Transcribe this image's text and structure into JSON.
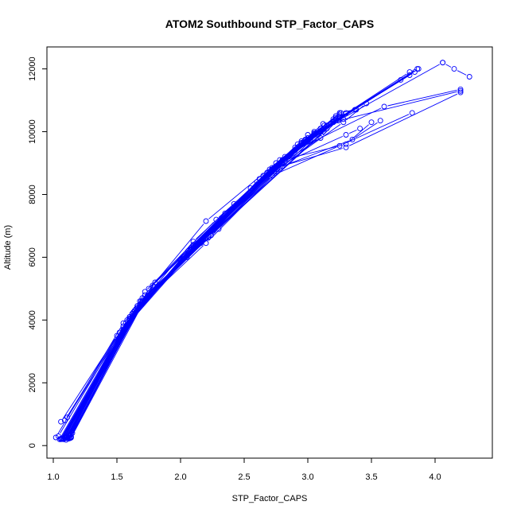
{
  "chart_data": {
    "type": "line",
    "title": "ATOM2 Southbound STP_Factor_CAPS",
    "xlabel": "STP_Factor_CAPS",
    "ylabel": "Altitude (m)",
    "xlim": [
      0.95,
      4.45
    ],
    "ylim": [
      -400,
      12700
    ],
    "x_ticks": [
      1.0,
      1.5,
      2.0,
      2.5,
      3.0,
      3.5,
      4.0
    ],
    "x_tick_labels": [
      "1.0",
      "1.5",
      "2.0",
      "2.5",
      "3.0",
      "3.5",
      "4.0"
    ],
    "y_ticks": [
      0,
      2000,
      4000,
      6000,
      8000,
      10000,
      12000
    ],
    "y_tick_labels": [
      "0",
      "2000",
      "4000",
      "6000",
      "8000",
      "10000",
      "12000"
    ],
    "series_color": "#0000ff",
    "grid": false,
    "series": [
      {
        "values": [
          [
            1.02,
            260
          ],
          [
            1.55,
            3900
          ],
          [
            2.1,
            6500
          ],
          [
            2.95,
            9700
          ],
          [
            4.06,
            12200
          ]
        ]
      },
      {
        "values": [
          [
            4.06,
            12200
          ],
          [
            4.15,
            12000
          ],
          [
            4.27,
            11750
          ]
        ]
      },
      {
        "values": [
          [
            1.06,
            200
          ],
          [
            1.62,
            4100
          ],
          [
            2.15,
            6450
          ],
          [
            2.95,
            9650
          ],
          [
            3.8,
            11900
          ]
        ]
      },
      {
        "values": [
          [
            1.08,
            220
          ],
          [
            1.6,
            4000
          ],
          [
            2.12,
            6400
          ],
          [
            3.0,
            9800
          ],
          [
            3.86,
            12000
          ]
        ]
      },
      {
        "values": [
          [
            1.1,
            240
          ],
          [
            1.64,
            4300
          ],
          [
            2.18,
            6550
          ],
          [
            3.05,
            9900
          ],
          [
            3.87,
            12000
          ]
        ]
      },
      {
        "values": [
          [
            1.12,
            250
          ],
          [
            1.66,
            4400
          ],
          [
            2.2,
            6600
          ],
          [
            3.1,
            10000
          ],
          [
            3.73,
            11650
          ]
        ]
      },
      {
        "values": [
          [
            1.13,
            230
          ],
          [
            1.68,
            4500
          ],
          [
            2.22,
            6650
          ],
          [
            3.2,
            10300
          ],
          [
            3.8,
            11800
          ]
        ]
      },
      {
        "values": [
          [
            1.14,
            270
          ],
          [
            1.7,
            4600
          ],
          [
            2.24,
            6700
          ],
          [
            3.25,
            10450
          ],
          [
            3.84,
            11900
          ]
        ]
      },
      {
        "values": [
          [
            1.05,
            200
          ],
          [
            1.6,
            4100
          ],
          [
            2.1,
            6350
          ],
          [
            2.7,
            8800
          ],
          [
            3.24,
            10350
          ],
          [
            4.2,
            11300
          ]
        ]
      },
      {
        "values": [
          [
            1.07,
            210
          ],
          [
            1.62,
            4200
          ],
          [
            2.14,
            6400
          ],
          [
            2.75,
            8850
          ],
          [
            3.3,
            9500
          ],
          [
            4.2,
            11250
          ]
        ]
      },
      {
        "values": [
          [
            1.09,
            250
          ],
          [
            1.58,
            3850
          ],
          [
            2.1,
            6300
          ],
          [
            2.72,
            8600
          ],
          [
            3.25,
            9550
          ],
          [
            3.82,
            10600
          ]
        ]
      },
      {
        "values": [
          [
            1.11,
            260
          ],
          [
            1.65,
            4350
          ],
          [
            2.2,
            6450
          ],
          [
            2.8,
            8900
          ],
          [
            3.35,
            9750
          ],
          [
            3.57,
            10350
          ]
        ]
      },
      {
        "values": [
          [
            1.1,
            230
          ],
          [
            1.63,
            4250
          ],
          [
            2.16,
            6450
          ],
          [
            2.78,
            8950
          ],
          [
            3.3,
            9900
          ],
          [
            3.41,
            10100
          ]
        ]
      },
      {
        "values": [
          [
            1.13,
            260
          ],
          [
            1.7,
            4550
          ],
          [
            2.24,
            6700
          ],
          [
            2.76,
            8800
          ],
          [
            3.28,
            10300
          ],
          [
            3.46,
            10900
          ]
        ]
      },
      {
        "values": [
          [
            1.12,
            300
          ],
          [
            1.68,
            4600
          ],
          [
            2.3,
            6900
          ],
          [
            2.85,
            9200
          ],
          [
            3.25,
            10600
          ],
          [
            3.37,
            10700
          ]
        ]
      },
      {
        "values": [
          [
            1.14,
            350
          ],
          [
            1.72,
            4800
          ],
          [
            2.2,
            7150
          ],
          [
            2.9,
            9500
          ],
          [
            3.2,
            10400
          ],
          [
            3.26,
            10600
          ]
        ]
      },
      {
        "values": [
          [
            1.08,
            200
          ],
          [
            1.55,
            3800
          ],
          [
            2.06,
            6200
          ],
          [
            2.65,
            8600
          ],
          [
            3.05,
            9950
          ]
        ]
      },
      {
        "values": [
          [
            1.1,
            180
          ],
          [
            1.57,
            3900
          ],
          [
            2.08,
            6250
          ],
          [
            2.68,
            8700
          ],
          [
            3.1,
            10100
          ]
        ]
      },
      {
        "values": [
          [
            1.12,
            220
          ],
          [
            1.6,
            4050
          ],
          [
            2.12,
            6350
          ],
          [
            2.72,
            8800
          ],
          [
            3.15,
            10200
          ]
        ]
      },
      {
        "values": [
          [
            1.06,
            760
          ],
          [
            1.5,
            3500
          ],
          [
            2.0,
            5900
          ],
          [
            2.55,
            8200
          ],
          [
            3.0,
            9900
          ]
        ]
      },
      {
        "values": [
          [
            1.09,
            800
          ],
          [
            1.52,
            3600
          ],
          [
            2.02,
            5950
          ],
          [
            2.6,
            8400
          ],
          [
            3.05,
            10000
          ]
        ]
      },
      {
        "values": [
          [
            1.11,
            900
          ],
          [
            1.55,
            3700
          ],
          [
            2.05,
            6000
          ],
          [
            2.62,
            8500
          ],
          [
            3.12,
            10250
          ]
        ]
      },
      {
        "values": [
          [
            1.04,
            300
          ],
          [
            1.58,
            4000
          ],
          [
            2.1,
            6300
          ],
          [
            2.7,
            8700
          ],
          [
            3.22,
            10450
          ],
          [
            3.38,
            10700
          ]
        ]
      },
      {
        "values": [
          [
            1.15,
            400
          ],
          [
            1.75,
            5000
          ],
          [
            2.25,
            6900
          ],
          [
            2.8,
            9000
          ],
          [
            3.2,
            10300
          ]
        ]
      },
      {
        "values": [
          [
            1.13,
            330
          ],
          [
            1.72,
            4900
          ],
          [
            2.28,
            7200
          ],
          [
            2.74,
            8850
          ],
          [
            3.22,
            10500
          ]
        ]
      },
      {
        "values": [
          [
            1.14,
            250
          ],
          [
            1.78,
            5100
          ],
          [
            2.35,
            7400
          ],
          [
            2.92,
            9600
          ],
          [
            3.25,
            10550
          ]
        ]
      },
      {
        "values": [
          [
            1.1,
            280
          ],
          [
            1.8,
            5200
          ],
          [
            2.42,
            7700
          ],
          [
            2.98,
            9750
          ],
          [
            3.28,
            10400
          ]
        ]
      },
      {
        "values": [
          [
            1.12,
            260
          ],
          [
            1.66,
            4400
          ],
          [
            2.2,
            6600
          ],
          [
            2.9,
            9400
          ],
          [
            3.6,
            10800
          ],
          [
            4.2,
            11350
          ]
        ]
      },
      {
        "values": [
          [
            1.08,
            240
          ],
          [
            1.62,
            4200
          ],
          [
            2.18,
            6550
          ],
          [
            2.8,
            9100
          ],
          [
            3.3,
            9600
          ],
          [
            3.5,
            10300
          ]
        ]
      },
      {
        "values": [
          [
            1.1,
            250
          ],
          [
            1.6,
            4100
          ],
          [
            2.15,
            6500
          ],
          [
            2.75,
            9000
          ],
          [
            3.05,
            9950
          ],
          [
            3.13,
            10200
          ]
        ]
      },
      {
        "values": [
          [
            1.12,
            300
          ],
          [
            1.64,
            4300
          ],
          [
            2.2,
            6600
          ],
          [
            2.78,
            9100
          ],
          [
            3.15,
            10100
          ],
          [
            3.2,
            10300
          ]
        ]
      },
      {
        "values": [
          [
            1.14,
            280
          ],
          [
            1.7,
            4700
          ],
          [
            2.22,
            6650
          ],
          [
            2.82,
            9200
          ],
          [
            3.12,
            10000
          ],
          [
            3.22,
            10350
          ]
        ]
      },
      {
        "values": [
          [
            1.06,
            220
          ],
          [
            1.6,
            4050
          ],
          [
            2.1,
            6400
          ],
          [
            2.76,
            8900
          ],
          [
            3.1,
            9800
          ],
          [
            3.24,
            10400
          ]
        ]
      },
      {
        "values": [
          [
            1.07,
            230
          ],
          [
            1.63,
            4250
          ],
          [
            2.14,
            6450
          ],
          [
            2.72,
            8850
          ],
          [
            3.0,
            9700
          ],
          [
            3.18,
            10250
          ]
        ]
      },
      {
        "values": [
          [
            1.09,
            250
          ],
          [
            1.66,
            4450
          ],
          [
            2.16,
            6500
          ],
          [
            2.74,
            8800
          ],
          [
            3.02,
            9750
          ],
          [
            3.25,
            10500
          ]
        ]
      },
      {
        "values": [
          [
            1.11,
            270
          ],
          [
            1.69,
            4600
          ],
          [
            2.19,
            6600
          ],
          [
            2.77,
            8950
          ],
          [
            3.08,
            9900
          ],
          [
            3.3,
            10600
          ]
        ]
      }
    ]
  }
}
